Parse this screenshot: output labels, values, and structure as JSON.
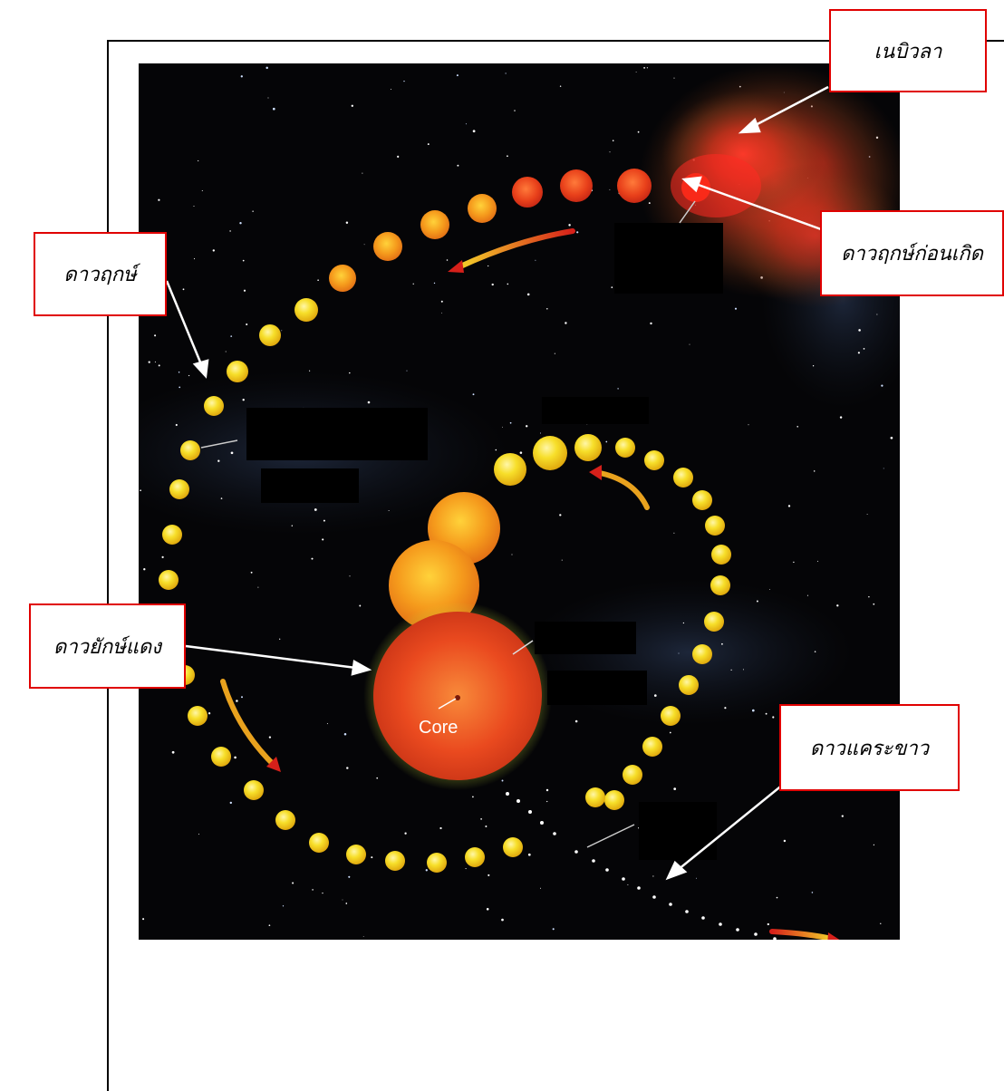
{
  "callouts": {
    "nebula": "เนบิวลา",
    "protostar": "ดาวฤกษ์ก่อนเกิด",
    "star": "ดาวฤกษ์",
    "red_giant": "ดาวยักษ์แดง",
    "white_dwarf": "ดาวแคระขาว"
  },
  "core_label": "Core",
  "colors": {
    "callout_border": "#e00000",
    "star_yellow": "#f5dc22",
    "red_giant": "#e9481c",
    "space": "#050507"
  }
}
